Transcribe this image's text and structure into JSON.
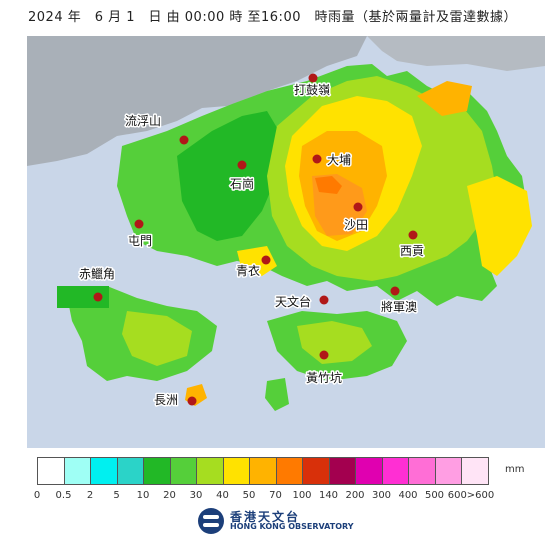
{
  "title": "2024 年　6 月 1　日 由 00:00 時 至16:00　時雨量（基於兩量計及雷達數據）",
  "stations": [
    {
      "name": "打鼓嶺",
      "icon": "station-marker"
    },
    {
      "name": "流浮山",
      "icon": "station-marker"
    },
    {
      "name": "大埔",
      "icon": "station-marker"
    },
    {
      "name": "石崗",
      "icon": "station-marker"
    },
    {
      "name": "沙田",
      "icon": "station-marker"
    },
    {
      "name": "屯門",
      "icon": "station-marker"
    },
    {
      "name": "西貢",
      "icon": "station-marker"
    },
    {
      "name": "青衣",
      "icon": "station-marker"
    },
    {
      "name": "赤鱲角",
      "icon": "station-marker"
    },
    {
      "name": "天文台",
      "icon": "station-marker"
    },
    {
      "name": "將軍澳",
      "icon": "station-marker"
    },
    {
      "name": "黃竹坑",
      "icon": "station-marker"
    },
    {
      "name": "長洲",
      "icon": "station-marker"
    }
  ],
  "legend": {
    "unit": "mm",
    "colors": [
      "#ffffff",
      "#9ffff5",
      "#00f0f0",
      "#2bd3c8",
      "#22b826",
      "#55cf3a",
      "#a6dd20",
      "#ffe200",
      "#ffb300",
      "#ff7a00",
      "#d8300a",
      "#a3004f",
      "#e000b0",
      "#ff2fd3",
      "#ff6ed6",
      "#ff9ee3",
      "#ffe4f6"
    ],
    "ticks": [
      "0",
      "0.5",
      "2",
      "5",
      "10",
      "20",
      "30",
      "40",
      "50",
      "70",
      "100",
      "140",
      "200",
      "300",
      "400",
      "500",
      "600>600"
    ]
  },
  "logo": {
    "name_zh": "香港天文台",
    "name_en": "HONG KONG OBSERVATORY"
  },
  "colors": {
    "sea": "#c9d6e8",
    "mainland": "#a9b0b8",
    "marker": "#b01818"
  }
}
